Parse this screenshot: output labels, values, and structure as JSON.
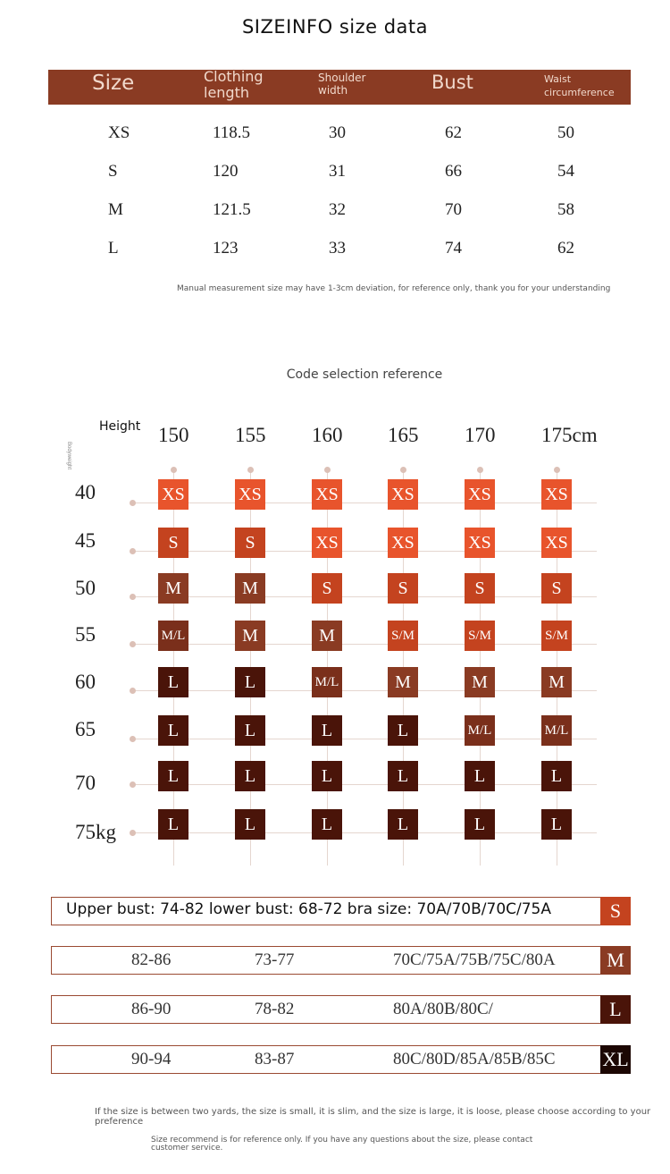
{
  "title": "SIZEINFO size data",
  "size_table": {
    "headers": [
      "Size",
      "Clothing length",
      "Shoulder width",
      "Bust",
      "Waist circumference"
    ],
    "rows": [
      [
        "XS",
        "118.5",
        "30",
        "62",
        "50"
      ],
      [
        "S",
        "120",
        "31",
        "66",
        "54"
      ],
      [
        "M",
        "121.5",
        "32",
        "70",
        "58"
      ],
      [
        "L",
        "123",
        "33",
        "74",
        "62"
      ]
    ]
  },
  "measurement_note": "Manual measurement size may have 1-3cm deviation, for reference only, thank you for your understanding",
  "code_selection": {
    "title": "Code selection reference",
    "height_label": "Height",
    "weight_label": "Bodyweight",
    "heights": [
      "150",
      "155",
      "160",
      "165",
      "170",
      "175cm"
    ],
    "weights": [
      "40",
      "45",
      "50",
      "55",
      "60",
      "65",
      "70",
      "75kg"
    ],
    "grid": [
      [
        "XS",
        "XS",
        "XS",
        "XS",
        "XS",
        "XS"
      ],
      [
        "S",
        "S",
        "XS",
        "XS",
        "XS",
        "XS"
      ],
      [
        "M",
        "M",
        "S",
        "S",
        "S",
        "S"
      ],
      [
        "M/L",
        "M",
        "M",
        "S/M",
        "S/M",
        "S/M"
      ],
      [
        "L",
        "L",
        "M/L",
        "M",
        "M",
        "M"
      ],
      [
        "L",
        "L",
        "L",
        "L",
        "M/L",
        "M/L"
      ],
      [
        "L",
        "L",
        "L",
        "L",
        "L",
        "L"
      ],
      [
        "L",
        "L",
        "L",
        "L",
        "L",
        "L"
      ]
    ],
    "colors": {
      "XS": "#e8542c",
      "S": "#c4431f",
      "M": "#8a3b23",
      "L": "#4a1409",
      "S/M": "#c4431f",
      "M/L": "#7a2f1b"
    }
  },
  "bra_rows": [
    {
      "text": "Upper bust: 74-82 lower bust: 68-72 bra size: 70A/70B/70C/75A",
      "size": "S",
      "color": "#c4431f"
    },
    {
      "upper": "82-86",
      "lower": "73-77",
      "bra": "70C/75A/75B/75C/80A",
      "size": "M",
      "color": "#8a3b23"
    },
    {
      "upper": "86-90",
      "lower": "78-82",
      "bra": "80A/80B/80C/",
      "size": "L",
      "color": "#4a1409"
    },
    {
      "upper": "90-94",
      "lower": "83-87",
      "bra": "80C/80D/85A/85B/85C",
      "size": "XL",
      "color": "#1c0703"
    }
  ],
  "footer_note_1": "If the size is between two yards, the size is small, it is slim, and the size is large, it is loose, please choose according to your preference",
  "footer_note_2": "Size recommend is for reference only. If you have any questions about the size, please contact customer service."
}
